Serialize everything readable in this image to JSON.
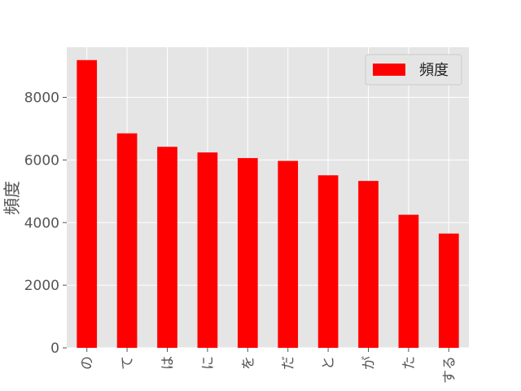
{
  "chart_data": {
    "type": "bar",
    "categories": [
      "の",
      "て",
      "は",
      "に",
      "を",
      "だ",
      "と",
      "が",
      "た",
      "する"
    ],
    "series": [
      {
        "name": "頻度",
        "color": "#ff0000",
        "values": [
          9190,
          6850,
          6420,
          6240,
          6060,
          5970,
          5510,
          5330,
          4250,
          3650
        ]
      }
    ],
    "title": "",
    "xlabel": "",
    "ylabel": "頻度",
    "ylim": [
      0,
      9600
    ],
    "yticks": [
      "0",
      "2000",
      "4000",
      "6000",
      "8000"
    ],
    "grid": true,
    "legend_position": "top-right",
    "background_color": "#e5e5e5",
    "grid_color": "#ffffff"
  }
}
